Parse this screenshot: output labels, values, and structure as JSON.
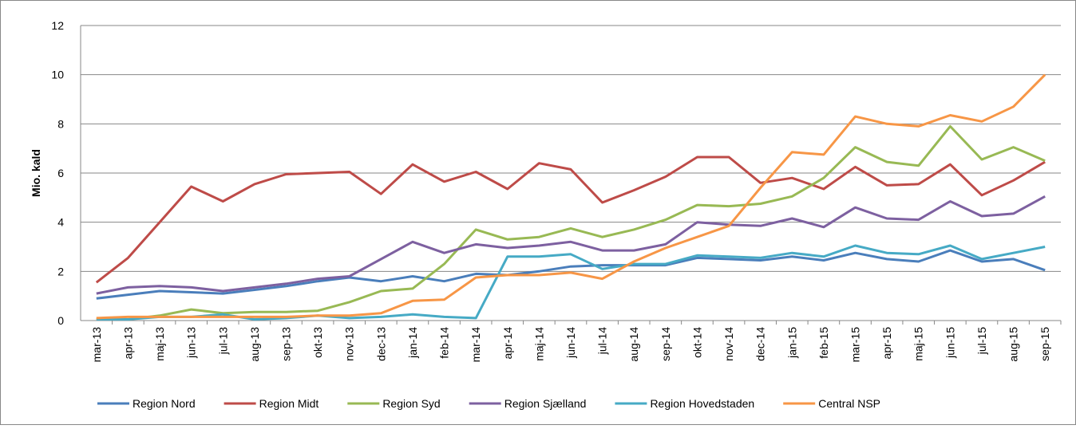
{
  "chart_data": {
    "type": "line",
    "y_label": "Mio. kald",
    "categories": [
      "mar-13",
      "apr-13",
      "maj-13",
      "jun-13",
      "jul-13",
      "aug-13",
      "sep-13",
      "okt-13",
      "nov-13",
      "dec-13",
      "jan-14",
      "feb-14",
      "mar-14",
      "apr-14",
      "maj-14",
      "jun-14",
      "jul-14",
      "aug-14",
      "sep-14",
      "okt-14",
      "nov-14",
      "dec-14",
      "jan-15",
      "feb-15",
      "mar-15",
      "apr-15",
      "maj-15",
      "jun-15",
      "jul-15",
      "aug-15",
      "sep-15"
    ],
    "series": [
      {
        "name": "Region Nord",
        "color": "#4a7ebb",
        "values": [
          0.9,
          1.05,
          1.2,
          1.15,
          1.1,
          1.25,
          1.4,
          1.6,
          1.75,
          1.6,
          1.8,
          1.6,
          1.9,
          1.85,
          2.0,
          2.2,
          2.25,
          2.25,
          2.25,
          2.55,
          2.5,
          2.45,
          2.6,
          2.45,
          2.75,
          2.5,
          2.4,
          2.85,
          2.4,
          2.5,
          2.05
        ]
      },
      {
        "name": "Region Midt",
        "color": "#be4b48",
        "values": [
          1.55,
          2.55,
          4.0,
          5.45,
          4.85,
          5.55,
          5.95,
          6.0,
          6.05,
          5.15,
          6.35,
          5.65,
          6.05,
          5.35,
          6.4,
          6.15,
          4.8,
          5.3,
          5.85,
          6.65,
          6.65,
          5.6,
          5.8,
          5.35,
          6.25,
          5.5,
          5.55,
          6.35,
          5.1,
          5.7,
          6.45
        ]
      },
      {
        "name": "Region Syd",
        "color": "#98b954",
        "values": [
          0.05,
          0.05,
          0.2,
          0.45,
          0.3,
          0.35,
          0.35,
          0.4,
          0.75,
          1.2,
          1.3,
          2.3,
          3.7,
          3.3,
          3.4,
          3.75,
          3.4,
          3.7,
          4.1,
          4.7,
          4.65,
          4.75,
          5.05,
          5.8,
          7.05,
          6.45,
          6.3,
          7.9,
          6.55,
          7.05,
          6.5
        ]
      },
      {
        "name": "Region Sjælland",
        "color": "#7d60a0",
        "values": [
          1.1,
          1.35,
          1.4,
          1.35,
          1.2,
          1.35,
          1.5,
          1.7,
          1.8,
          2.5,
          3.2,
          2.75,
          3.1,
          2.95,
          3.05,
          3.2,
          2.85,
          2.85,
          3.1,
          4.0,
          3.9,
          3.85,
          4.15,
          3.8,
          4.6,
          4.15,
          4.1,
          4.85,
          4.25,
          4.35,
          5.05
        ]
      },
      {
        "name": "Region Hovedstaden",
        "color": "#46aac5",
        "values": [
          0.05,
          0.05,
          0.15,
          0.15,
          0.25,
          0.05,
          0.1,
          0.2,
          0.1,
          0.15,
          0.25,
          0.15,
          0.1,
          2.6,
          2.6,
          2.7,
          2.1,
          2.3,
          2.3,
          2.65,
          2.6,
          2.55,
          2.75,
          2.6,
          3.05,
          2.75,
          2.7,
          3.05,
          2.5,
          2.75,
          3.0
        ]
      },
      {
        "name": "Central NSP",
        "color": "#f79646",
        "values": [
          0.1,
          0.15,
          0.15,
          0.15,
          0.15,
          0.15,
          0.15,
          0.2,
          0.2,
          0.3,
          0.8,
          0.85,
          1.75,
          1.85,
          1.85,
          1.95,
          1.7,
          2.4,
          2.95,
          3.4,
          3.85,
          5.4,
          6.85,
          6.75,
          8.3,
          8.0,
          7.9,
          8.35,
          8.1,
          8.7,
          10.0
        ]
      }
    ],
    "ylim": [
      0,
      12
    ],
    "yticks": [
      0,
      2,
      4,
      6,
      8,
      10,
      12
    ],
    "grid": true,
    "legend": "bottom"
  }
}
